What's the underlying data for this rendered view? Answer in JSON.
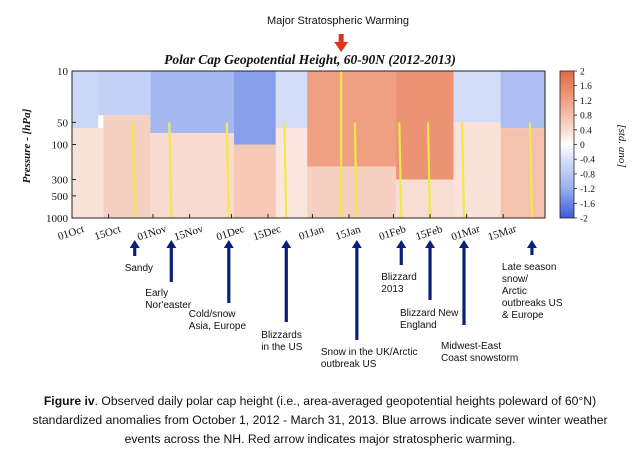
{
  "top_annotation": "Major Stratospheric Warming",
  "chart_data": {
    "type": "heatmap",
    "title": "Polar Cap Geopotential Height, 60-90N (2012-2013)",
    "ylabel": "Pressure - [hPa]",
    "colorbar_label": "[std. ano]",
    "x_tick_labels": [
      "01Oct",
      "15Oct",
      "01Nov",
      "15Nov",
      "01Dec",
      "15Dec",
      "01Jan",
      "15Jan",
      "01Feb",
      "15Feb",
      "01Mar",
      "15Mar"
    ],
    "x_tick_days": [
      0,
      14,
      31,
      45,
      61,
      75,
      92,
      106,
      123,
      137,
      151,
      165
    ],
    "xlim_days": [
      0,
      181
    ],
    "y_tick_labels": [
      "10",
      "50",
      "100",
      "300",
      "500",
      "1000"
    ],
    "y_tick_values": [
      10,
      50,
      100,
      300,
      500,
      1000
    ],
    "ylim": [
      10,
      1000
    ],
    "y_scale": "log",
    "colorbar_ticks": [
      "2",
      "1.6",
      "1.2",
      "0.8",
      "0.4",
      "0",
      "-0.4",
      "-0.8",
      "-1.2",
      "-1.6",
      "-2"
    ],
    "colorbar_range": [
      -2,
      2
    ],
    "colors": {
      "neg_strong": "#3b5bd9",
      "neg_mid": "#98aef0",
      "neg_light": "#d9e1f9",
      "neutral": "#ffffff",
      "pos_light": "#f8dcd0",
      "pos_mid": "#f0a283",
      "pos_strong": "#e06944",
      "event_line": "#f2e84a",
      "event_arrow": "#0b1f78",
      "ssw_arrow": "#e0321c"
    },
    "events": [
      {
        "label": "Sandy",
        "day": 24
      },
      {
        "label": "Early Nor'easter",
        "day": 38
      },
      {
        "label": "Cold/snow Asia, Europe",
        "day": 60
      },
      {
        "label": "Blizzards in the US",
        "day": 82
      },
      {
        "label": "Snow in the UK/Arctic outbreak US",
        "day": 109
      },
      {
        "label": "Blizzard 2013",
        "day": 126
      },
      {
        "label": "Blizzard New England",
        "day": 137
      },
      {
        "label": "Midwest-East Coast snowstorm",
        "day": 150
      },
      {
        "label": "Late season snow/ Arctic outbreaks US & Europe",
        "day": 176
      }
    ],
    "ssw_day": 103,
    "anomaly_cells": [
      {
        "day0": 0,
        "day1": 10,
        "p0": 10,
        "p1": 60,
        "value": -0.6
      },
      {
        "day0": 0,
        "day1": 12,
        "p0": 60,
        "p1": 1000,
        "value": 0.35
      },
      {
        "day0": 10,
        "day1": 30,
        "p0": 10,
        "p1": 40,
        "value": -0.7
      },
      {
        "day0": 12,
        "day1": 30,
        "p0": 40,
        "p1": 1000,
        "value": 0.6
      },
      {
        "day0": 30,
        "day1": 62,
        "p0": 10,
        "p1": 70,
        "value": -1.1
      },
      {
        "day0": 30,
        "day1": 62,
        "p0": 70,
        "p1": 1000,
        "value": 0.45
      },
      {
        "day0": 62,
        "day1": 78,
        "p0": 10,
        "p1": 100,
        "value": -1.4
      },
      {
        "day0": 62,
        "day1": 78,
        "p0": 100,
        "p1": 1000,
        "value": 0.7
      },
      {
        "day0": 78,
        "day1": 90,
        "p0": 10,
        "p1": 60,
        "value": -0.5
      },
      {
        "day0": 78,
        "day1": 90,
        "p0": 60,
        "p1": 1000,
        "value": 0.3
      },
      {
        "day0": 90,
        "day1": 124,
        "p0": 10,
        "p1": 200,
        "value": 1.3
      },
      {
        "day0": 90,
        "day1": 124,
        "p0": 200,
        "p1": 1000,
        "value": 0.6
      },
      {
        "day0": 124,
        "day1": 146,
        "p0": 10,
        "p1": 300,
        "value": 1.5
      },
      {
        "day0": 124,
        "day1": 146,
        "p0": 300,
        "p1": 1000,
        "value": 0.4
      },
      {
        "day0": 146,
        "day1": 164,
        "p0": 10,
        "p1": 50,
        "value": -0.5
      },
      {
        "day0": 146,
        "day1": 164,
        "p0": 50,
        "p1": 1000,
        "value": 0.35
      },
      {
        "day0": 164,
        "day1": 181,
        "p0": 10,
        "p1": 60,
        "value": -1.0
      },
      {
        "day0": 164,
        "day1": 181,
        "p0": 60,
        "p1": 1000,
        "value": 0.8
      }
    ]
  },
  "caption": {
    "bold": "Figure iv",
    "text": ". Observed  daily polar cap height (i.e., area-averaged geopotential heights poleward of 60°N) standardized anomalies from October 1, 2012 - March 31, 2013. Blue arrows indicate sever winter weather events across the NH. Red arrow indicates major stratospheric warming."
  }
}
